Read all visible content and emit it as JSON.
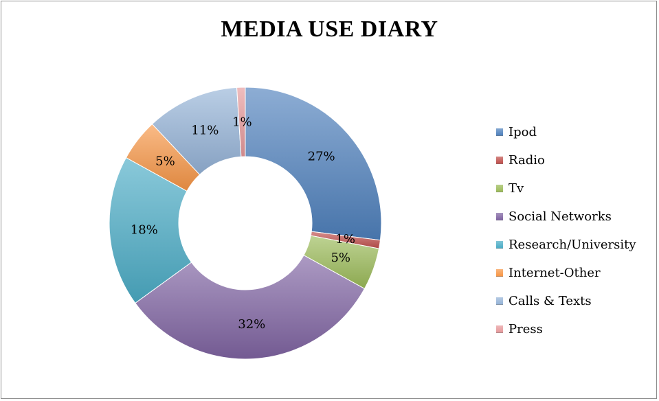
{
  "chart_data": {
    "type": "pie",
    "variant": "donut",
    "title": "MEDIA USE DIARY",
    "legend_position": "right",
    "slices": [
      {
        "name": "Ipod",
        "value": 27,
        "label": "27%",
        "color": "#4f81bd"
      },
      {
        "name": "Radio",
        "value": 1,
        "label": "1%",
        "color": "#c0504d"
      },
      {
        "name": "Tv",
        "value": 5,
        "label": "5%",
        "color": "#9bbb59"
      },
      {
        "name": "Social Networks",
        "value": 32,
        "label": "32%",
        "color": "#8064a2"
      },
      {
        "name": "Research/University",
        "value": 18,
        "label": "18%",
        "color": "#4bacc6"
      },
      {
        "name": "Internet-Other",
        "value": 5,
        "label": "5%",
        "color": "#f79646"
      },
      {
        "name": "Calls & Texts",
        "value": 11,
        "label": "11%",
        "color": "#95b3d7"
      },
      {
        "name": "Press",
        "value": 1,
        "label": "1%",
        "color": "#e6999b"
      }
    ]
  }
}
